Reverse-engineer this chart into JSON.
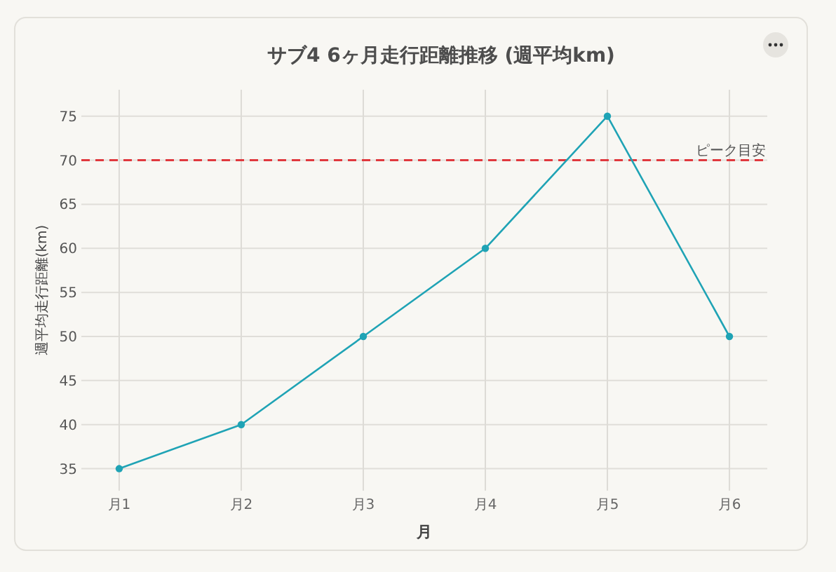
{
  "chart_data": {
    "type": "line",
    "title": "サブ4 6ヶ月走行距離推移 (週平均km)",
    "xlabel": "月",
    "ylabel": "週平均走行距離(km)",
    "categories": [
      "月1",
      "月2",
      "月3",
      "月4",
      "月5",
      "月6"
    ],
    "series": [
      {
        "color": "#1fa3b5",
        "values": [
          35,
          40,
          50,
          60,
          75,
          50
        ]
      }
    ],
    "ylim": [
      32.5,
      78
    ],
    "yticks": [
      35,
      40,
      45,
      50,
      55,
      60,
      65,
      70,
      75
    ],
    "grid": true,
    "marker": "circle",
    "line_style": "solid",
    "ref_lines": [
      {
        "axis": "y",
        "value": 70,
        "label": "ピーク目安",
        "color": "#e0393e",
        "line_style": "dashed"
      }
    ]
  }
}
